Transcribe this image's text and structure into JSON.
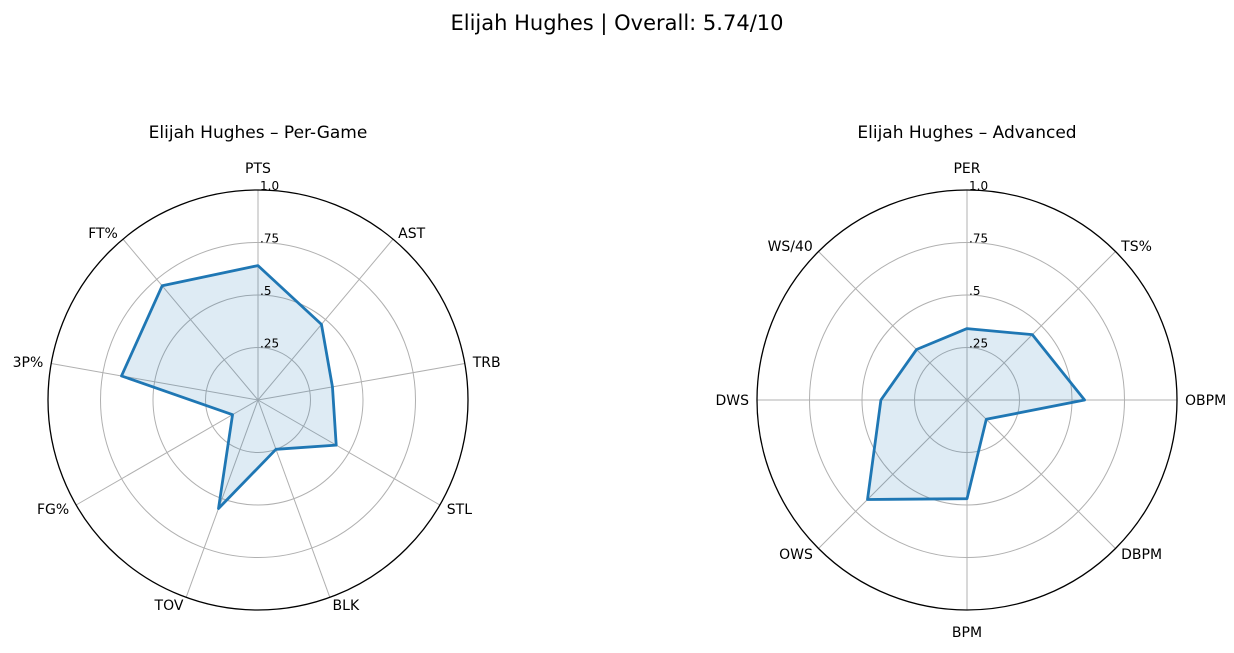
{
  "figure": {
    "suptitle": "Elijah Hughes | Overall: 5.74/10"
  },
  "chart_data": [
    {
      "type": "radar",
      "title": "Elijah Hughes – Per-Game",
      "categories": [
        "PTS",
        "AST",
        "TRB",
        "STL",
        "BLK",
        "TOV",
        "FG%",
        "3P%",
        "FT%"
      ],
      "values": [
        0.64,
        0.47,
        0.36,
        0.43,
        0.25,
        0.55,
        0.14,
        0.66,
        0.71
      ],
      "rlim": [
        0,
        1
      ],
      "rticks": [
        0.25,
        0.5,
        0.75,
        1.0
      ],
      "rtick_labels": [
        ".25",
        ".5",
        ".75",
        "1.0"
      ],
      "grid": true,
      "line_color": "#1f77b4",
      "fill_color": "#1f77b4"
    },
    {
      "type": "radar",
      "title": "Elijah Hughes – Advanced",
      "categories": [
        "PER",
        "TS%",
        "OBPM",
        "DBPM",
        "BPM",
        "OWS",
        "DWS",
        "WS/40"
      ],
      "values": [
        0.34,
        0.44,
        0.56,
        0.13,
        0.47,
        0.67,
        0.41,
        0.34
      ],
      "rlim": [
        0,
        1
      ],
      "rticks": [
        0.25,
        0.5,
        0.75,
        1.0
      ],
      "rtick_labels": [
        ".25",
        ".5",
        ".75",
        "1.0"
      ],
      "grid": true,
      "line_color": "#1f77b4",
      "fill_color": "#1f77b4"
    }
  ]
}
